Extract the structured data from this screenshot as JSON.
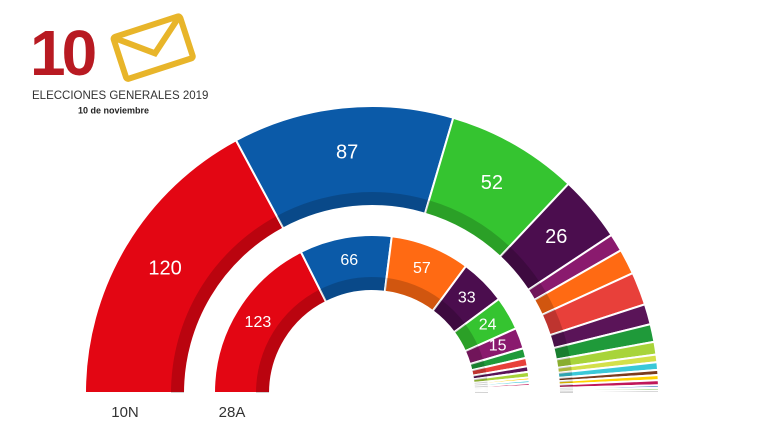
{
  "header": {
    "number": "10",
    "title": "ELECCIONES GENERALES 2019",
    "date": "10 de noviembre"
  },
  "chart_data": {
    "type": "semicircle-donut",
    "rings": [
      {
        "name": "10N",
        "values": [
          120,
          87,
          52,
          26,
          7,
          10,
          13,
          8,
          7,
          5,
          3,
          3,
          2,
          2,
          2,
          1,
          1,
          1
        ],
        "colors": [
          "#e30613",
          "#0b5aa8",
          "#35c430",
          "#4b0d4e",
          "#8a1a6e",
          "#ff6a13",
          "#e8403a",
          "#5a1458",
          "#1f9a3a",
          "#a8d43a",
          "#d4e04a",
          "#3ac8d8",
          "#7a3b1e",
          "#ffd200",
          "#c0185a",
          "#1f5fb8",
          "#6dc24a",
          "#b0b0b0"
        ]
      },
      {
        "name": "28A",
        "values": [
          123,
          66,
          57,
          33,
          24,
          15,
          7,
          6,
          4,
          4,
          2,
          2,
          2,
          1,
          1,
          1,
          1,
          1
        ],
        "colors": [
          "#e30613",
          "#0b5aa8",
          "#ff6a13",
          "#4b0d4e",
          "#35c430",
          "#8a1a6e",
          "#1f9a3a",
          "#e8403a",
          "#5a1458",
          "#a8d43a",
          "#ffd200",
          "#3ac8d8",
          "#c0185a",
          "#7a3b1e",
          "#1f5fb8",
          "#6dc24a",
          "#d4e04a",
          "#b0b0b0"
        ]
      }
    ]
  }
}
